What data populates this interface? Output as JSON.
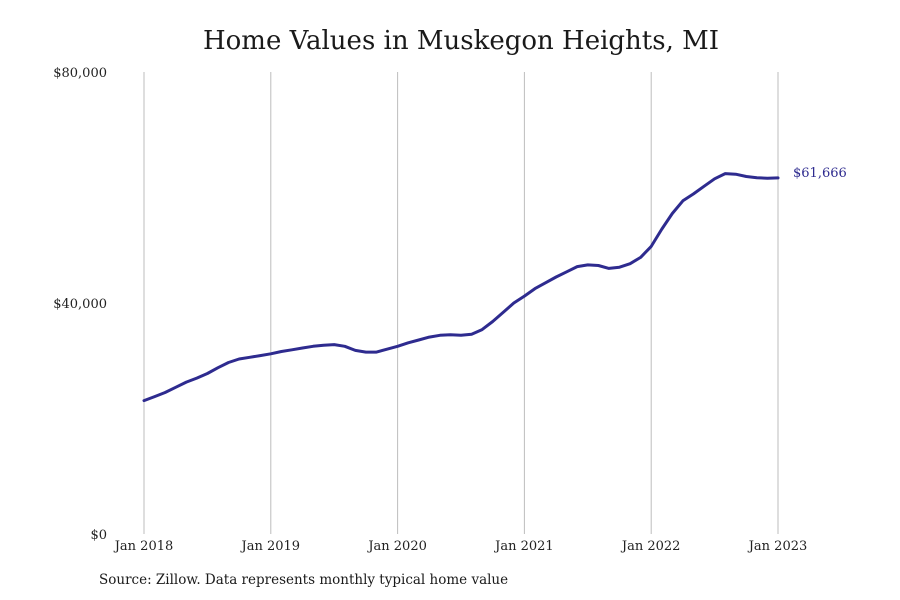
{
  "chart_data": {
    "type": "line",
    "title": "Home Values in Muskegon Heights, MI",
    "source": "Source: Zillow. Data represents monthly typical home value",
    "xlabel": "",
    "ylabel": "",
    "x_ticks": [
      "Jan 2018",
      "Jan 2019",
      "Jan 2020",
      "Jan 2021",
      "Jan 2022",
      "Jan 2023"
    ],
    "y_ticks": [
      "$0",
      "$40,000",
      "$80,000"
    ],
    "ylim": [
      0,
      80000
    ],
    "xlim": [
      "2018-01",
      "2023-01"
    ],
    "grid": "vertical",
    "line_color": "#2e2b8f",
    "end_label": "$61,666",
    "series": [
      {
        "x": [
          "2018-01",
          "2018-02",
          "2018-03",
          "2018-04",
          "2018-05",
          "2018-06",
          "2018-07",
          "2018-08",
          "2018-09",
          "2018-10",
          "2018-11",
          "2018-12",
          "2019-01",
          "2019-02",
          "2019-03",
          "2019-04",
          "2019-05",
          "2019-06",
          "2019-07",
          "2019-08",
          "2019-09",
          "2019-10",
          "2019-11",
          "2019-12",
          "2020-01",
          "2020-02",
          "2020-03",
          "2020-04",
          "2020-05",
          "2020-06",
          "2020-07",
          "2020-08",
          "2020-09",
          "2020-10",
          "2020-11",
          "2020-12",
          "2021-01",
          "2021-02",
          "2021-03",
          "2021-04",
          "2021-05",
          "2021-06",
          "2021-07",
          "2021-08",
          "2021-09",
          "2021-10",
          "2021-11",
          "2021-12",
          "2022-01",
          "2022-02",
          "2022-03",
          "2022-04",
          "2022-05",
          "2022-06",
          "2022-07",
          "2022-08",
          "2022-09",
          "2022-10",
          "2022-11",
          "2022-12",
          "2023-01"
        ],
        "values": [
          23100,
          23800,
          24500,
          25400,
          26300,
          27000,
          27800,
          28800,
          29700,
          30300,
          30600,
          30900,
          31200,
          31600,
          31900,
          32200,
          32500,
          32700,
          32800,
          32500,
          31800,
          31500,
          31500,
          32000,
          32500,
          33100,
          33600,
          34100,
          34400,
          34500,
          34400,
          34600,
          35400,
          36800,
          38400,
          40000,
          41200,
          42500,
          43500,
          44500,
          45400,
          46300,
          46600,
          46500,
          46000,
          46200,
          46800,
          47900,
          49800,
          52800,
          55500,
          57700,
          58900,
          60200,
          61500,
          62400,
          62300,
          61900,
          61700,
          61600,
          61666
        ]
      }
    ]
  }
}
